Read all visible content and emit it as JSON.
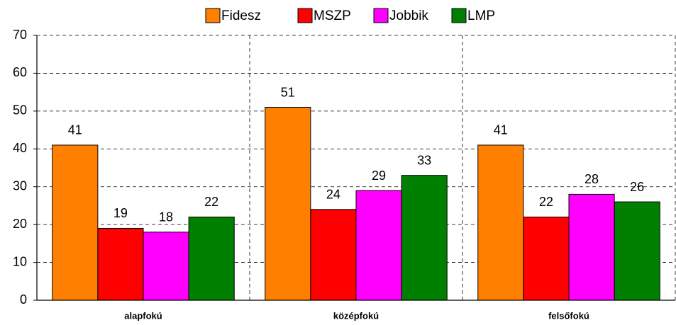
{
  "chart_data": {
    "type": "bar",
    "categories": [
      "alapfokú",
      "középfokú",
      "felsőfokú"
    ],
    "series": [
      {
        "name": "Fidesz",
        "color": "#ff8000",
        "values": [
          41,
          51,
          41
        ]
      },
      {
        "name": "MSZP",
        "color": "#ff0000",
        "values": [
          19,
          24,
          22
        ]
      },
      {
        "name": "Jobbik",
        "color": "#ff00ff",
        "values": [
          18,
          29,
          28
        ]
      },
      {
        "name": "LMP",
        "color": "#008000",
        "values": [
          22,
          33,
          26
        ]
      }
    ],
    "ylim": [
      0,
      70
    ],
    "yticks": [
      0,
      10,
      20,
      30,
      40,
      50,
      60,
      70
    ],
    "grid": true,
    "legend": "top"
  }
}
